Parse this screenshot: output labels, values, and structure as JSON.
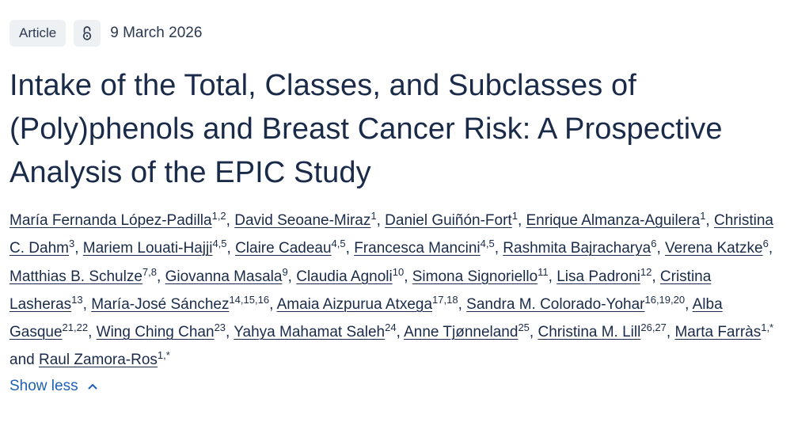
{
  "article": {
    "type_label": "Article",
    "open_access_icon": "open-lock-icon",
    "date": "9 March 2026",
    "title": "Intake of the Total, Classes, and Subclasses of (Poly)phenols and Breast Cancer Risk: A Prospective Analysis of the EPIC Study",
    "authors": [
      {
        "name": "María Fernanda López-Padilla",
        "aff": "1,2"
      },
      {
        "name": "David Seoane-Miraz",
        "aff": "1"
      },
      {
        "name": "Daniel Guiñón-Fort",
        "aff": "1"
      },
      {
        "name": "Enrique Almanza-Aguilera",
        "aff": "1"
      },
      {
        "name": "Christina C. Dahm",
        "aff": "3"
      },
      {
        "name": "Mariem Louati-Hajji",
        "aff": "4,5"
      },
      {
        "name": "Claire Cadeau",
        "aff": "4,5"
      },
      {
        "name": "Francesca Mancini",
        "aff": "4,5"
      },
      {
        "name": "Rashmita Bajracharya",
        "aff": "6"
      },
      {
        "name": "Verena Katzke",
        "aff": "6"
      },
      {
        "name": "Matthias B. Schulze",
        "aff": "7,8"
      },
      {
        "name": "Giovanna Masala",
        "aff": "9"
      },
      {
        "name": "Claudia Agnoli",
        "aff": "10"
      },
      {
        "name": "Simona Signoriello",
        "aff": "11"
      },
      {
        "name": "Lisa Padroni",
        "aff": "12"
      },
      {
        "name": "Cristina Lasheras",
        "aff": "13"
      },
      {
        "name": "María-José Sánchez",
        "aff": "14,15,16"
      },
      {
        "name": "Amaia Aizpurua Atxega",
        "aff": "17,18"
      },
      {
        "name": "Sandra M. Colorado-Yohar",
        "aff": "16,19,20"
      },
      {
        "name": "Alba Gasque",
        "aff": "21,22"
      },
      {
        "name": "Wing Ching Chan",
        "aff": "23"
      },
      {
        "name": "Yahya Mahamat Saleh",
        "aff": "24"
      },
      {
        "name": "Anne Tjønneland",
        "aff": "25"
      },
      {
        "name": "Christina M. Lill",
        "aff": "26,27"
      },
      {
        "name": "Marta Farràs",
        "aff": "1,*"
      },
      {
        "name": "Raul Zamora-Ros",
        "aff": "1,*"
      }
    ],
    "separator": ", ",
    "last_separator": " and ",
    "show_less_label": "Show less",
    "show_less_icon": "chevron-up-icon"
  },
  "colors": {
    "text": "#1a2b4a",
    "link": "#1f5fb4",
    "badge_bg": "#eef1f4"
  }
}
